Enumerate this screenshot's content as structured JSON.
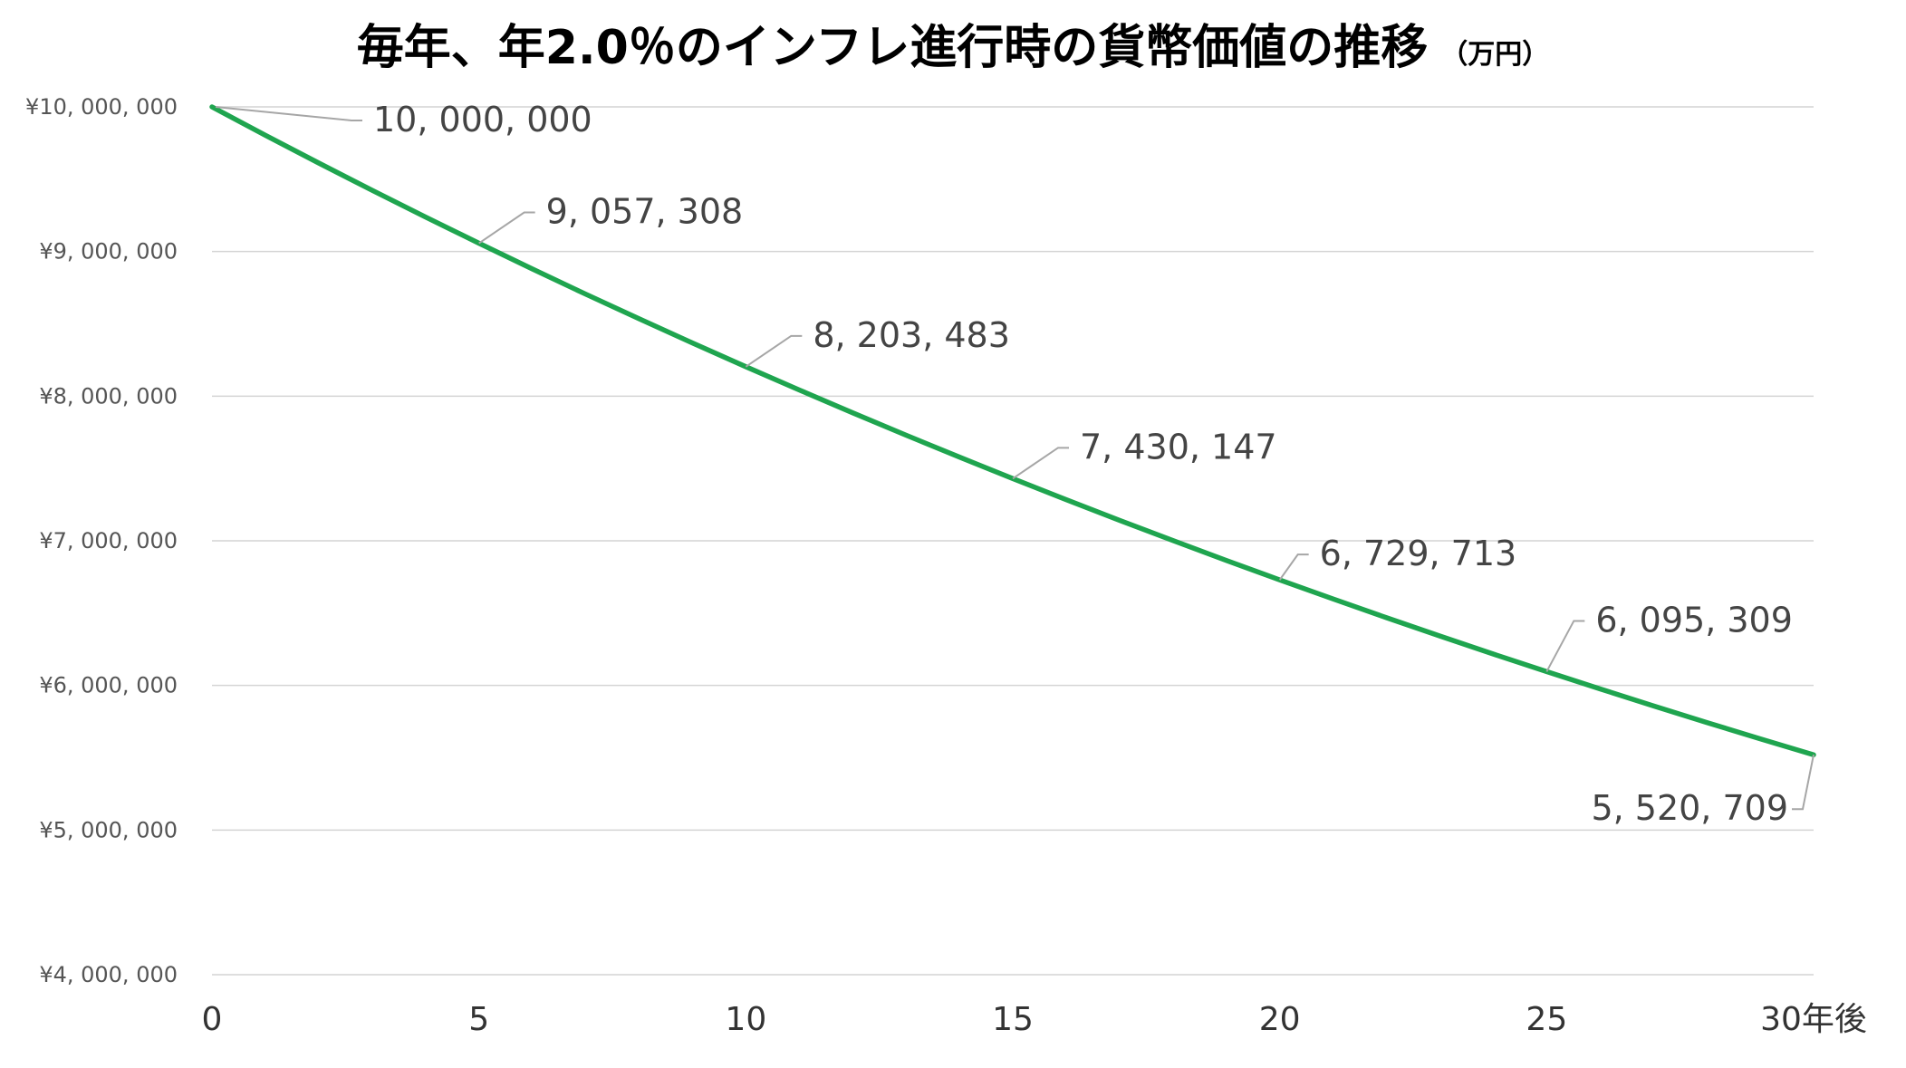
{
  "chart_data": {
    "type": "line",
    "title": "毎年、年2.0％のインフレ進行時の貨幣価値の推移",
    "unit_label": "（万円）",
    "x": [
      0,
      1,
      2,
      3,
      4,
      5,
      6,
      7,
      8,
      9,
      10,
      11,
      12,
      13,
      14,
      15,
      16,
      17,
      18,
      19,
      20,
      21,
      22,
      23,
      24,
      25,
      26,
      27,
      28,
      29,
      30
    ],
    "xlim": [
      0,
      30
    ],
    "x_ticks": [
      0,
      5,
      10,
      15,
      20,
      25,
      30
    ],
    "x_tick_labels": [
      "0",
      "5",
      "10",
      "15",
      "20",
      "25",
      "30年後"
    ],
    "ylim": [
      4000000,
      10000000
    ],
    "y_ticks": [
      4000000,
      5000000,
      6000000,
      7000000,
      8000000,
      9000000,
      10000000
    ],
    "y_tick_labels": [
      "¥4, 000, 000",
      "¥5, 000, 000",
      "¥6, 000, 000",
      "¥7, 000, 000",
      "¥8, 000, 000",
      "¥9, 000, 000",
      "¥10, 000, 000"
    ],
    "grid": true,
    "series": [
      {
        "color": "#1fa54f",
        "values": [
          10000000,
          9803922,
          9611688,
          9423223,
          9238454,
          9057308,
          8879714,
          8705602,
          8534904,
          8367553,
          8203483,
          8042630,
          7884932,
          7730325,
          7578750,
          7430147,
          7284458,
          7141626,
          7001594,
          6864308,
          6729713,
          6597758,
          6468390,
          6341559,
          6217215,
          6095309,
          5975793,
          5858621,
          5743746,
          5631124,
          5520709
        ]
      }
    ],
    "data_labels": [
      {
        "x": 0,
        "text": "10, 000, 000"
      },
      {
        "x": 5,
        "text": "9, 057, 308"
      },
      {
        "x": 10,
        "text": "8, 203, 483"
      },
      {
        "x": 15,
        "text": "7, 430, 147"
      },
      {
        "x": 20,
        "text": "6, 729, 713"
      },
      {
        "x": 25,
        "text": "6, 095, 309"
      },
      {
        "x": 30,
        "text": "5, 520, 709"
      }
    ]
  }
}
